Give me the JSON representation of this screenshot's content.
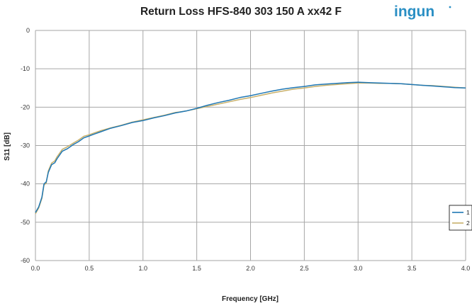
{
  "logo": {
    "text": "ingun",
    "color": "#2a8fc4"
  },
  "chart_data": {
    "type": "line",
    "title": "Return Loss HFS-840 303 150 A xx42 F",
    "xlabel": "Frequency [GHz]",
    "ylabel": "S11 [dB]",
    "xlim": [
      0,
      4
    ],
    "ylim": [
      -60,
      0
    ],
    "x_ticks": [
      "0.0",
      "0.5",
      "1.0",
      "1.5",
      "2.0",
      "2.5",
      "3.0",
      "3.5",
      "4.0"
    ],
    "y_ticks": [
      "0",
      "-10",
      "-20",
      "-30",
      "-40",
      "-50",
      "-60"
    ],
    "grid": true,
    "legend_position": "right",
    "series": [
      {
        "name": "1",
        "color": "#1f77b4",
        "x": [
          0.0,
          0.03,
          0.06,
          0.08,
          0.1,
          0.12,
          0.15,
          0.18,
          0.2,
          0.25,
          0.3,
          0.35,
          0.4,
          0.45,
          0.5,
          0.55,
          0.6,
          0.7,
          0.8,
          0.9,
          1.0,
          1.1,
          1.2,
          1.3,
          1.4,
          1.5,
          1.6,
          1.7,
          1.8,
          1.9,
          2.0,
          2.1,
          2.2,
          2.3,
          2.4,
          2.5,
          2.6,
          2.7,
          2.8,
          2.9,
          3.0,
          3.1,
          3.2,
          3.3,
          3.4,
          3.5,
          3.6,
          3.7,
          3.8,
          3.9,
          4.0
        ],
        "values": [
          -47.5,
          -46.0,
          -43.5,
          -40.0,
          -39.5,
          -37.0,
          -35.0,
          -34.5,
          -33.5,
          -31.5,
          -30.8,
          -29.8,
          -29.0,
          -28.0,
          -27.5,
          -27.0,
          -26.5,
          -25.5,
          -24.8,
          -24.0,
          -23.5,
          -22.8,
          -22.2,
          -21.5,
          -21.0,
          -20.3,
          -19.5,
          -18.8,
          -18.2,
          -17.5,
          -17.0,
          -16.4,
          -15.8,
          -15.3,
          -14.9,
          -14.6,
          -14.2,
          -14.0,
          -13.8,
          -13.6,
          -13.5,
          -13.6,
          -13.7,
          -13.8,
          -13.9,
          -14.1,
          -14.3,
          -14.5,
          -14.7,
          -14.9,
          -15.0
        ]
      },
      {
        "name": "2",
        "color": "#c8b06a",
        "x": [
          0.0,
          0.03,
          0.06,
          0.08,
          0.1,
          0.12,
          0.15,
          0.18,
          0.2,
          0.25,
          0.3,
          0.35,
          0.4,
          0.45,
          0.5,
          0.55,
          0.6,
          0.7,
          0.8,
          0.9,
          1.0,
          1.1,
          1.2,
          1.3,
          1.4,
          1.5,
          1.6,
          1.7,
          1.8,
          1.9,
          2.0,
          2.1,
          2.2,
          2.3,
          2.4,
          2.5,
          2.6,
          2.7,
          2.8,
          2.9,
          3.0,
          3.1,
          3.2,
          3.3,
          3.4,
          3.5,
          3.6,
          3.7,
          3.8,
          3.9,
          4.0
        ],
        "values": [
          -47.8,
          -46.3,
          -43.8,
          -40.3,
          -39.8,
          -36.6,
          -34.6,
          -34.0,
          -33.0,
          -31.0,
          -30.3,
          -29.4,
          -28.6,
          -27.6,
          -27.2,
          -26.7,
          -26.2,
          -25.4,
          -24.7,
          -23.9,
          -23.3,
          -22.7,
          -22.1,
          -21.4,
          -21.0,
          -20.4,
          -19.8,
          -19.2,
          -18.6,
          -18.0,
          -17.5,
          -16.9,
          -16.3,
          -15.8,
          -15.3,
          -15.0,
          -14.6,
          -14.3,
          -14.1,
          -13.9,
          -13.7,
          -13.7,
          -13.8,
          -13.8,
          -13.9,
          -14.1,
          -14.3,
          -14.4,
          -14.6,
          -14.8,
          -15.0
        ]
      }
    ]
  }
}
